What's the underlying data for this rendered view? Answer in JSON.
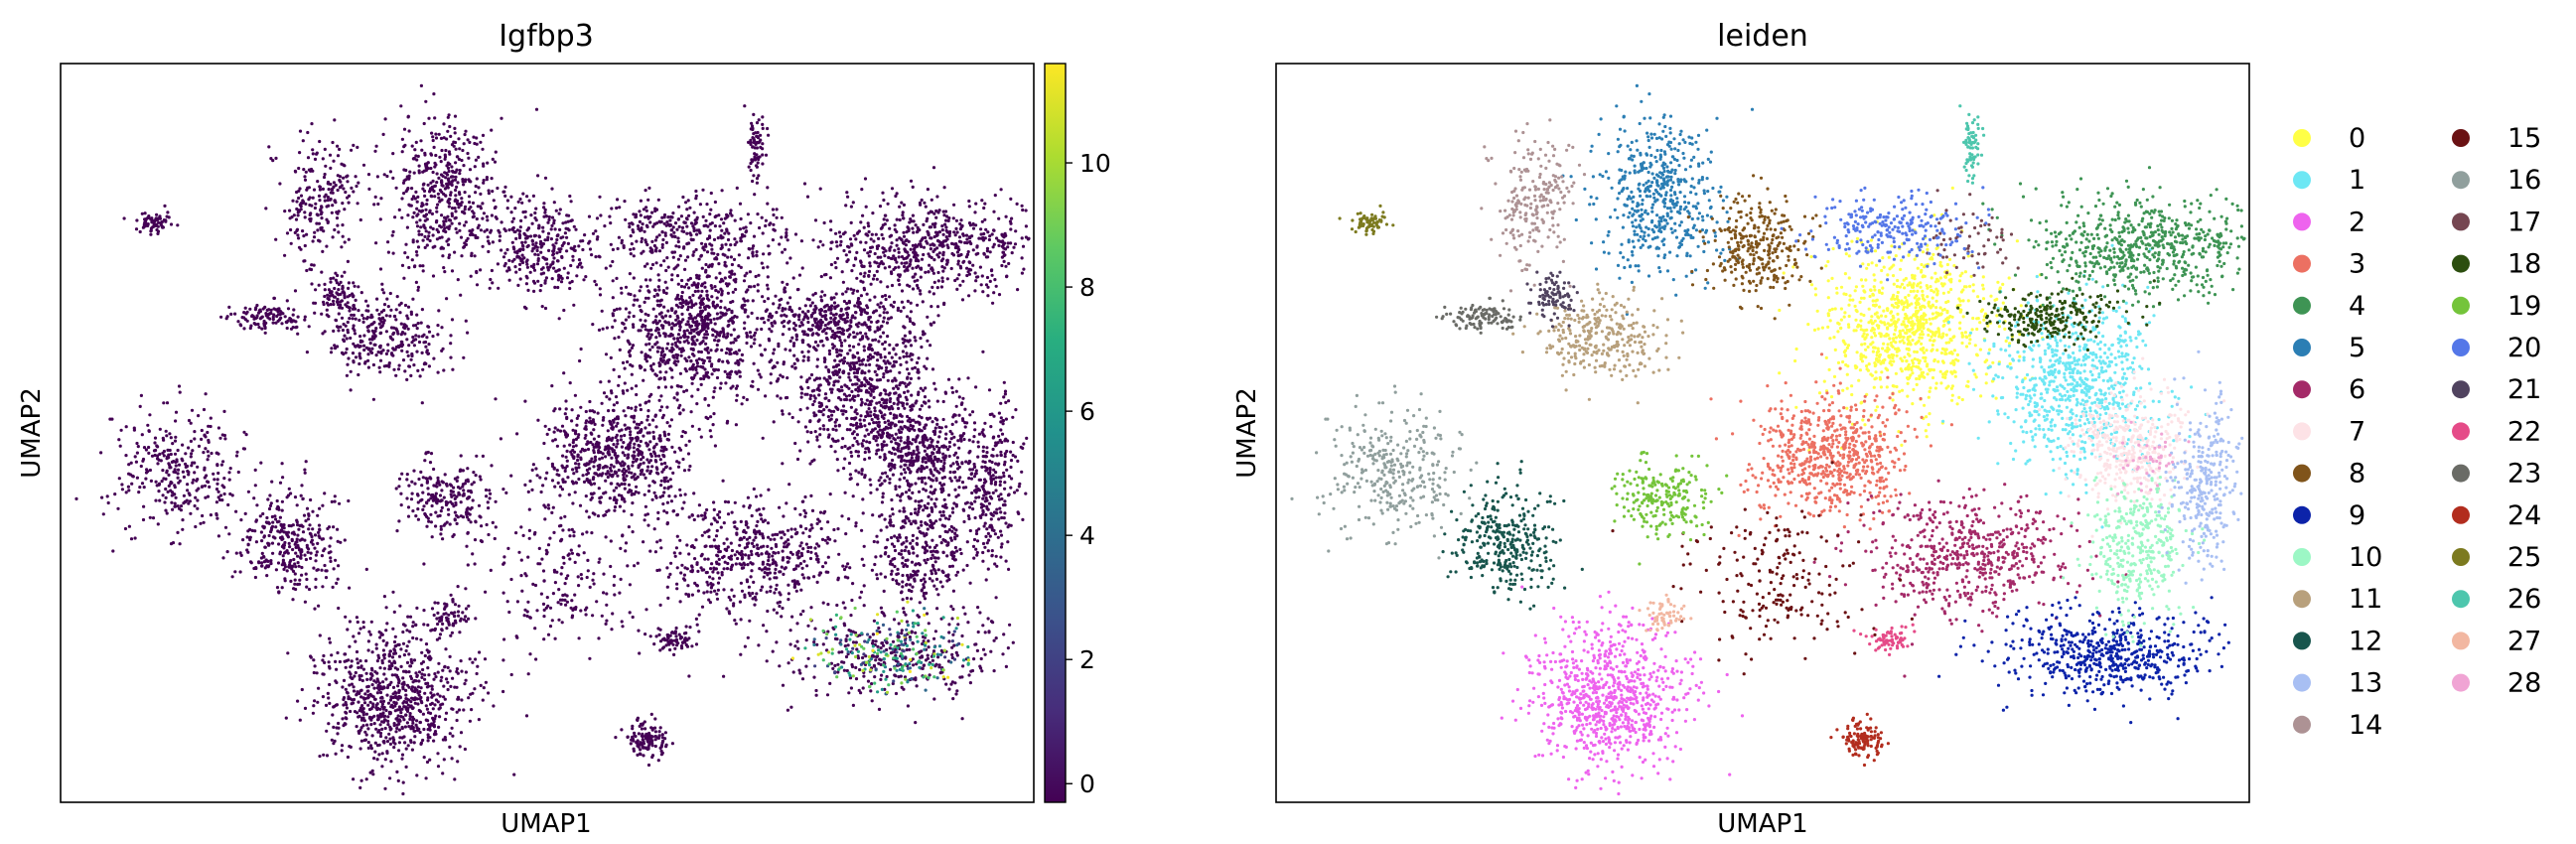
{
  "figure": {
    "panels": [
      {
        "title": "Igfbp3",
        "xlabel": "UMAP1",
        "ylabel": "UMAP2"
      },
      {
        "title": "leiden",
        "xlabel": "UMAP1",
        "ylabel": "UMAP2"
      }
    ]
  },
  "chart_data": [
    {
      "type": "scatter",
      "title": "Igfbp3",
      "xlabel": "UMAP1",
      "ylabel": "UMAP2",
      "color_variable": "Igfbp3 expression",
      "colormap": "viridis",
      "colorbar": {
        "range": [
          -0.3,
          11.6
        ],
        "ticks": [
          0,
          2,
          4,
          6,
          8,
          10
        ]
      },
      "ticks_shown": false,
      "grid": false,
      "background_color": "#440154",
      "high_expression_region": "lower-right cluster",
      "description_values": {
        "majority_value": 0,
        "max_value": 11.5
      }
    },
    {
      "type": "scatter",
      "title": "leiden",
      "xlabel": "UMAP1",
      "ylabel": "UMAP2",
      "ticks_shown": false,
      "grid": false,
      "legend_placement": "right, outside, two columns",
      "categories": [
        "0",
        "1",
        "2",
        "3",
        "4",
        "5",
        "6",
        "7",
        "8",
        "9",
        "10",
        "11",
        "12",
        "13",
        "14",
        "15",
        "16",
        "17",
        "18",
        "19",
        "20",
        "21",
        "22",
        "23",
        "24",
        "25",
        "26",
        "27",
        "28"
      ],
      "colors": [
        "#ffff46",
        "#6de7f4",
        "#ee63ee",
        "#ec7062",
        "#3e9454",
        "#2b7eb4",
        "#a42a68",
        "#fde2e6",
        "#80541b",
        "#0c23a9",
        "#9cf7c5",
        "#b8a07c",
        "#18554d",
        "#a8bff3",
        "#ad9294",
        "#6a1113",
        "#909f9d",
        "#754651",
        "#2c4e0f",
        "#74c43a",
        "#5477e8",
        "#50435f",
        "#e54b88",
        "#6a6b66",
        "#b22d1e",
        "#7c7a1f",
        "#4dc6ad",
        "#f2b7a1",
        "#f0a4d4"
      ]
    }
  ]
}
